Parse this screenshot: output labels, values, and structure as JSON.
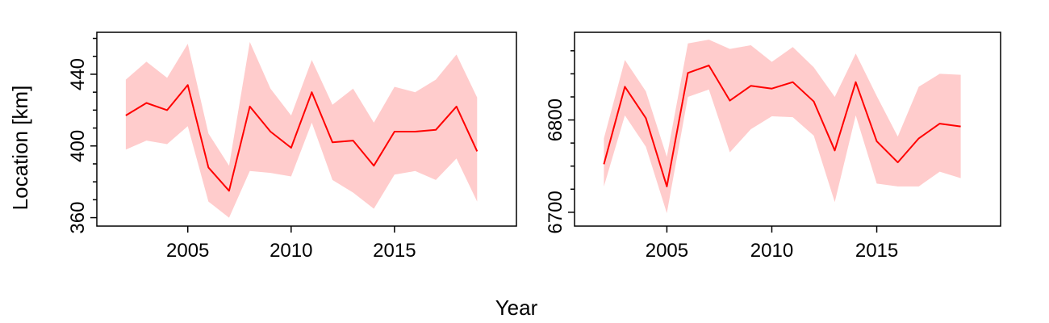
{
  "chart_data": [
    {
      "type": "line",
      "title": "",
      "xlabel": "Year",
      "ylabel": "Location [km]",
      "xlim": [
        2000.6,
        2020.9
      ],
      "ylim": [
        355.3,
        463.4
      ],
      "xticks": [
        2005,
        2010,
        2015
      ],
      "yticks": [
        360,
        400,
        440
      ],
      "yminor_ticks": [
        370,
        380,
        390,
        410,
        420,
        430,
        450,
        460
      ],
      "grid": false,
      "legend": "none",
      "line_color": "#ff0000",
      "band_color": "#ffcccc",
      "x": [
        2002,
        2003,
        2004,
        2005,
        2006,
        2007,
        2008,
        2009,
        2010,
        2011,
        2012,
        2013,
        2014,
        2015,
        2016,
        2017,
        2018,
        2019
      ],
      "series": [
        {
          "values": [
            417,
            424,
            420,
            434,
            388,
            375,
            422,
            408,
            399,
            430,
            402,
            403,
            389,
            408,
            408,
            409,
            422,
            397
          ],
          "lower": [
            398,
            403,
            401,
            411,
            369,
            360,
            386,
            385,
            383,
            413,
            381,
            374,
            365,
            384,
            386,
            381,
            393,
            369
          ],
          "upper": [
            437,
            447,
            438,
            457,
            407,
            389,
            458,
            432,
            417,
            448,
            423,
            432,
            413,
            433,
            430,
            437,
            451,
            427
          ]
        }
      ]
    },
    {
      "type": "line",
      "title": "",
      "xlabel": "Year",
      "ylabel": "",
      "xlim": [
        2000.6,
        2020.9
      ],
      "ylim": [
        6685,
        6895
      ],
      "xticks": [
        2005,
        2010,
        2015
      ],
      "yticks": [
        6700,
        6800
      ],
      "yminor_ticks": [
        6725,
        6750,
        6775,
        6825,
        6850,
        6875
      ],
      "grid": false,
      "legend": "none",
      "line_color": "#ff0000",
      "band_color": "#ffcccc",
      "x": [
        2002,
        2003,
        2004,
        2005,
        2006,
        2007,
        2008,
        2009,
        2010,
        2011,
        2012,
        2013,
        2014,
        2015,
        2016,
        2017,
        2018,
        2019
      ],
      "series": [
        {
          "values": [
            6752,
            6836,
            6802,
            6728,
            6851,
            6859,
            6821,
            6837,
            6834,
            6841,
            6820,
            6767,
            6841,
            6777,
            6754,
            6780,
            6796,
            6793
          ],
          "lower": [
            6728,
            6805,
            6771,
            6699,
            6825,
            6833,
            6765,
            6790,
            6804,
            6803,
            6783,
            6711,
            6805,
            6731,
            6728,
            6728,
            6744,
            6737
          ],
          "upper": [
            6780,
            6865,
            6831,
            6760,
            6883,
            6887,
            6877,
            6881,
            6863,
            6879,
            6857,
            6825,
            6872,
            6826,
            6782,
            6836,
            6850,
            6849
          ]
        }
      ]
    }
  ]
}
